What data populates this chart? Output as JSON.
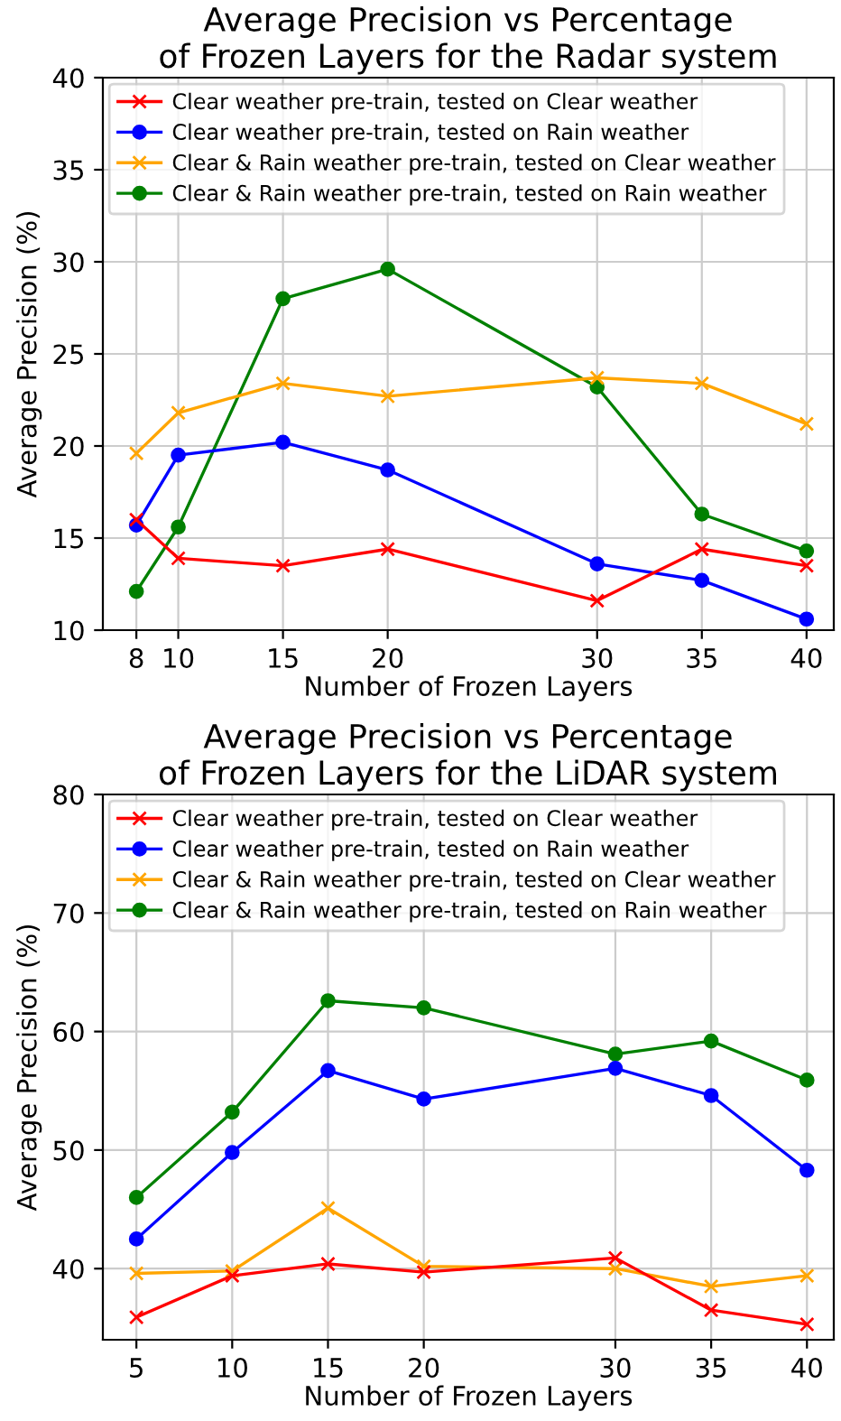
{
  "chart_data": [
    {
      "type": "line",
      "title": "Average Precision vs Percentage\nof Frozen Layers for the Radar system",
      "xlabel": "Number of Frozen Layers",
      "ylabel": "Average Precision (%)",
      "xlim": [
        6.4,
        41.3
      ],
      "xticks": [
        8,
        10,
        15,
        20,
        30,
        35,
        40
      ],
      "ylim": [
        10,
        40
      ],
      "yticks": [
        10,
        15,
        20,
        25,
        30,
        35,
        40
      ],
      "grid": true,
      "legend": "top left",
      "x": [
        8,
        10,
        15,
        20,
        30,
        35,
        40
      ],
      "series": [
        {
          "name": "Clear weather pre-train, tested on Clear weather",
          "color": "#ff0000",
          "marker": "cross",
          "values": [
            16.0,
            13.9,
            13.5,
            14.4,
            11.6,
            14.4,
            13.5
          ]
        },
        {
          "name": "Clear weather pre-train, tested on Rain weather",
          "color": "#0000ff",
          "marker": "circle",
          "values": [
            15.7,
            19.5,
            20.2,
            18.7,
            13.6,
            12.7,
            10.6
          ]
        },
        {
          "name": "Clear & Rain weather pre-train, tested on Clear weather",
          "color": "#ffa500",
          "marker": "cross",
          "values": [
            19.6,
            21.8,
            23.4,
            22.7,
            23.7,
            23.4,
            21.2
          ]
        },
        {
          "name": "Clear & Rain weather pre-train, tested on Rain weather",
          "color": "#008000",
          "marker": "circle",
          "values": [
            12.1,
            15.6,
            28.0,
            29.6,
            23.2,
            16.3,
            14.3
          ]
        }
      ]
    },
    {
      "type": "line",
      "title": "Average Precision vs Percentage\nof Frozen Layers for the LiDAR system",
      "xlabel": "Number of Frozen Layers",
      "ylabel": "Average Precision (%)",
      "xlim": [
        3.25,
        41.4
      ],
      "xticks": [
        5,
        10,
        15,
        20,
        30,
        35,
        40
      ],
      "ylim": [
        34,
        80
      ],
      "yticks": [
        40,
        50,
        60,
        70,
        80
      ],
      "grid": true,
      "legend": "top left",
      "x": [
        5,
        10,
        15,
        20,
        30,
        35,
        40
      ],
      "series": [
        {
          "name": "Clear weather pre-train, tested on Clear weather",
          "color": "#ff0000",
          "marker": "cross",
          "values": [
            35.9,
            39.4,
            40.4,
            39.7,
            40.9,
            36.5,
            35.3
          ]
        },
        {
          "name": "Clear weather pre-train, tested on Rain weather",
          "color": "#0000ff",
          "marker": "circle",
          "values": [
            42.5,
            49.8,
            56.7,
            54.3,
            56.9,
            54.6,
            48.3
          ]
        },
        {
          "name": "Clear & Rain weather pre-train, tested on Clear weather",
          "color": "#ffa500",
          "marker": "cross",
          "values": [
            39.6,
            39.8,
            45.1,
            40.2,
            40.0,
            38.5,
            39.4
          ]
        },
        {
          "name": "Clear & Rain weather pre-train, tested on Rain weather",
          "color": "#008000",
          "marker": "circle",
          "values": [
            46.0,
            53.2,
            62.6,
            62.0,
            58.1,
            59.2,
            55.9
          ]
        }
      ]
    }
  ]
}
